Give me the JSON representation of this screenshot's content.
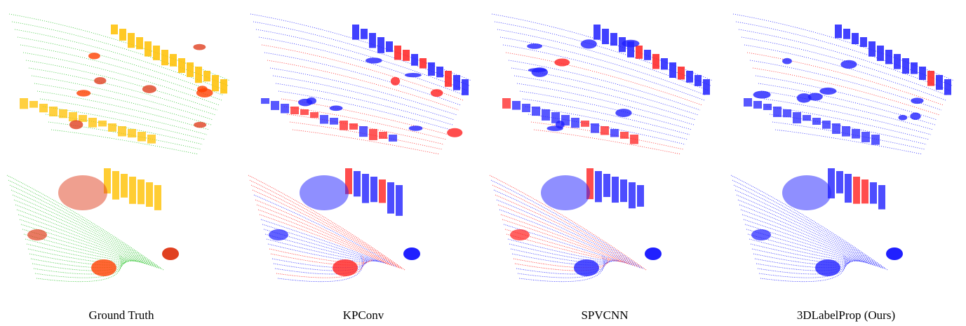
{
  "captions": [
    "Ground Truth",
    "KPConv",
    "SPVCNN",
    "3DLabelProp (Ours)"
  ]
}
